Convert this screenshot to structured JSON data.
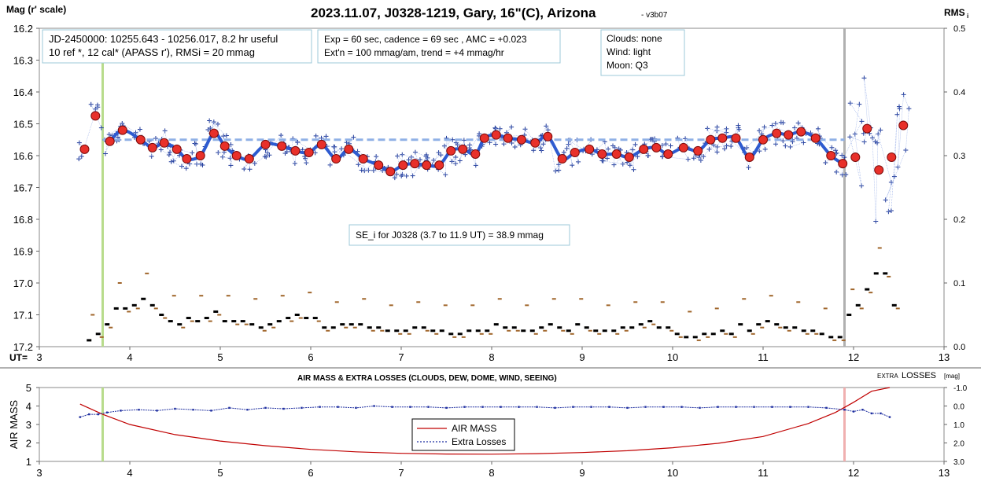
{
  "chart_data": [
    {
      "type": "scatter",
      "title": "2023.11.07, J0328-1219, Gary, 16\"(C), Arizona",
      "version": "- v3b07",
      "ylabel_left": "Mag (r' scale)",
      "ylabel_right": "RMS",
      "ylabel_right_sub": "i",
      "x_prefix": "UT=",
      "xlim": [
        3,
        13
      ],
      "ylim_left": [
        16.2,
        17.2
      ],
      "ylim_right": [
        0.0,
        0.5
      ],
      "x_ticks": [
        "3",
        "4",
        "5",
        "6",
        "7",
        "8",
        "9",
        "10",
        "11",
        "12",
        "13"
      ],
      "y_ticks_left": [
        "16.2",
        "16.3",
        "16.4",
        "16.5",
        "16.6",
        "16.7",
        "16.8",
        "16.9",
        "17.0",
        "17.1",
        "17.2"
      ],
      "y_ticks_right": [
        "0.5",
        "0.4",
        "0.3",
        "0.2",
        "0.1",
        "0.0"
      ],
      "info_boxes": {
        "jd_line1": "JD-2450000: 10255.643 - 10256.017, 8.2 hr useful",
        "jd_line2": "10 ref *, 12 cal*  (APASS r'), RMSi = 20 mmag",
        "exp_line1": "Exp = 60 sec, cadence = 69 sec , AMC = +0.023",
        "exp_line2": "Ext'n = 100 mmag/am, trend = +4 mmag/hr",
        "clouds": "Clouds: none",
        "wind": "Wind:   light",
        "moon": "Moon:  Q3",
        "se": "SE_i for J0328 (3.7 to 11.9 UT) = 38.9 mmag"
      },
      "vertical_markers": {
        "start_ut": 3.7,
        "end_ut": 11.9,
        "start_color": "#b8dc8c",
        "end_color": "#b0b0b0"
      },
      "reference_level": {
        "mag": 16.55,
        "x_range": [
          3.7,
          11.9
        ],
        "color": "#8fb0e6"
      },
      "binned_points": [
        [
          3.5,
          16.58
        ],
        [
          3.62,
          16.475
        ],
        [
          3.78,
          16.555
        ],
        [
          3.92,
          16.52
        ],
        [
          4.12,
          16.55
        ],
        [
          4.25,
          16.575
        ],
        [
          4.38,
          16.56
        ],
        [
          4.52,
          16.58
        ],
        [
          4.63,
          16.61
        ],
        [
          4.78,
          16.6
        ],
        [
          4.93,
          16.53
        ],
        [
          5.05,
          16.57
        ],
        [
          5.18,
          16.6
        ],
        [
          5.32,
          16.61
        ],
        [
          5.5,
          16.565
        ],
        [
          5.68,
          16.57
        ],
        [
          5.83,
          16.585
        ],
        [
          5.98,
          16.59
        ],
        [
          6.12,
          16.565
        ],
        [
          6.28,
          16.61
        ],
        [
          6.42,
          16.58
        ],
        [
          6.58,
          16.61
        ],
        [
          6.75,
          16.63
        ],
        [
          6.88,
          16.65
        ],
        [
          7.02,
          16.63
        ],
        [
          7.15,
          16.625
        ],
        [
          7.28,
          16.63
        ],
        [
          7.42,
          16.63
        ],
        [
          7.55,
          16.585
        ],
        [
          7.68,
          16.58
        ],
        [
          7.82,
          16.595
        ],
        [
          7.92,
          16.545
        ],
        [
          8.05,
          16.535
        ],
        [
          8.18,
          16.545
        ],
        [
          8.33,
          16.55
        ],
        [
          8.48,
          16.56
        ],
        [
          8.62,
          16.54
        ],
        [
          8.78,
          16.61
        ],
        [
          8.92,
          16.59
        ],
        [
          9.08,
          16.58
        ],
        [
          9.22,
          16.595
        ],
        [
          9.38,
          16.595
        ],
        [
          9.52,
          16.605
        ],
        [
          9.68,
          16.58
        ],
        [
          9.82,
          16.575
        ],
        [
          9.95,
          16.595
        ],
        [
          10.12,
          16.575
        ],
        [
          10.28,
          16.585
        ],
        [
          10.42,
          16.55
        ],
        [
          10.55,
          16.545
        ],
        [
          10.7,
          16.545
        ],
        [
          10.85,
          16.605
        ],
        [
          11.0,
          16.55
        ],
        [
          11.15,
          16.53
        ],
        [
          11.28,
          16.535
        ],
        [
          11.42,
          16.525
        ],
        [
          11.58,
          16.545
        ],
        [
          11.75,
          16.6
        ],
        [
          11.88,
          16.625
        ],
        [
          12.02,
          16.605
        ],
        [
          12.15,
          16.515
        ],
        [
          12.28,
          16.645
        ],
        [
          12.42,
          16.605
        ],
        [
          12.55,
          16.505
        ]
      ],
      "rms_points": [
        [
          3.55,
          0.01
        ],
        [
          3.65,
          0.02
        ],
        [
          3.75,
          0.035
        ],
        [
          3.85,
          0.06
        ],
        [
          3.95,
          0.06
        ],
        [
          4.05,
          0.065
        ],
        [
          4.15,
          0.075
        ],
        [
          4.25,
          0.065
        ],
        [
          4.35,
          0.05
        ],
        [
          4.45,
          0.04
        ],
        [
          4.55,
          0.035
        ],
        [
          4.65,
          0.045
        ],
        [
          4.75,
          0.04
        ],
        [
          4.85,
          0.045
        ],
        [
          4.95,
          0.055
        ],
        [
          5.05,
          0.04
        ],
        [
          5.15,
          0.04
        ],
        [
          5.25,
          0.04
        ],
        [
          5.35,
          0.035
        ],
        [
          5.45,
          0.03
        ],
        [
          5.55,
          0.035
        ],
        [
          5.65,
          0.04
        ],
        [
          5.75,
          0.045
        ],
        [
          5.85,
          0.05
        ],
        [
          5.95,
          0.045
        ],
        [
          6.05,
          0.045
        ],
        [
          6.15,
          0.03
        ],
        [
          6.25,
          0.03
        ],
        [
          6.35,
          0.035
        ],
        [
          6.45,
          0.035
        ],
        [
          6.55,
          0.035
        ],
        [
          6.65,
          0.03
        ],
        [
          6.75,
          0.03
        ],
        [
          6.85,
          0.025
        ],
        [
          6.95,
          0.025
        ],
        [
          7.05,
          0.025
        ],
        [
          7.15,
          0.03
        ],
        [
          7.25,
          0.03
        ],
        [
          7.35,
          0.025
        ],
        [
          7.45,
          0.025
        ],
        [
          7.55,
          0.02
        ],
        [
          7.65,
          0.02
        ],
        [
          7.75,
          0.025
        ],
        [
          7.85,
          0.025
        ],
        [
          7.95,
          0.025
        ],
        [
          8.05,
          0.035
        ],
        [
          8.15,
          0.03
        ],
        [
          8.25,
          0.03
        ],
        [
          8.35,
          0.025
        ],
        [
          8.45,
          0.025
        ],
        [
          8.55,
          0.03
        ],
        [
          8.65,
          0.035
        ],
        [
          8.75,
          0.03
        ],
        [
          8.85,
          0.025
        ],
        [
          8.95,
          0.035
        ],
        [
          9.05,
          0.03
        ],
        [
          9.15,
          0.025
        ],
        [
          9.25,
          0.025
        ],
        [
          9.35,
          0.025
        ],
        [
          9.45,
          0.03
        ],
        [
          9.55,
          0.03
        ],
        [
          9.65,
          0.035
        ],
        [
          9.75,
          0.04
        ],
        [
          9.85,
          0.03
        ],
        [
          9.95,
          0.03
        ],
        [
          10.05,
          0.02
        ],
        [
          10.15,
          0.015
        ],
        [
          10.25,
          0.015
        ],
        [
          10.35,
          0.02
        ],
        [
          10.45,
          0.02
        ],
        [
          10.55,
          0.025
        ],
        [
          10.65,
          0.02
        ],
        [
          10.75,
          0.035
        ],
        [
          10.85,
          0.025
        ],
        [
          10.95,
          0.035
        ],
        [
          11.05,
          0.04
        ],
        [
          11.15,
          0.035
        ],
        [
          11.25,
          0.03
        ],
        [
          11.35,
          0.03
        ],
        [
          11.45,
          0.025
        ],
        [
          11.55,
          0.025
        ],
        [
          11.65,
          0.02
        ],
        [
          11.75,
          0.015
        ],
        [
          11.85,
          0.015
        ],
        [
          11.95,
          0.05
        ],
        [
          12.05,
          0.065
        ],
        [
          12.15,
          0.09
        ],
        [
          12.25,
          0.115
        ],
        [
          12.35,
          0.115
        ],
        [
          12.45,
          0.065
        ]
      ]
    },
    {
      "type": "line",
      "title": "AIR MASS & EXTRA LOSSES (CLOUDS, DEW, DOME, WIND, SEEING)",
      "ylabel_left": "AIR MASS",
      "ylabel_right": "EXTRA LOSSES [mag]",
      "ylabel_right_prefix": "EXTRA",
      "ylabel_right_main": "LOSSES",
      "ylabel_right_unit": "[mag]",
      "xlim": [
        3,
        13
      ],
      "ylim_left": [
        1,
        5
      ],
      "ylim_right": [
        3.0,
        -1.0
      ],
      "x_ticks": [
        "3",
        "4",
        "5",
        "6",
        "7",
        "8",
        "9",
        "10",
        "11",
        "12",
        "13"
      ],
      "y_ticks_left": [
        "5",
        "4",
        "3",
        "2",
        "1"
      ],
      "y_ticks_right": [
        "-1.0",
        "0.0",
        "1.0",
        "2.0",
        "3.0"
      ],
      "legend": {
        "position": "bottom-center",
        "items": [
          "AIR MASS",
          "Extra Losses"
        ]
      },
      "series": [
        {
          "name": "AIR MASS",
          "color": "#c00000",
          "x": [
            3.45,
            3.7,
            4.0,
            4.5,
            5.0,
            5.5,
            6.0,
            6.5,
            7.0,
            7.5,
            8.0,
            8.5,
            9.0,
            9.5,
            10.0,
            10.5,
            11.0,
            11.5,
            11.8,
            12.0,
            12.2,
            12.4
          ],
          "values": [
            4.1,
            3.55,
            3.0,
            2.45,
            2.1,
            1.85,
            1.65,
            1.52,
            1.44,
            1.4,
            1.39,
            1.42,
            1.48,
            1.58,
            1.74,
            1.98,
            2.35,
            3.05,
            3.65,
            4.2,
            4.8,
            5.0
          ]
        },
        {
          "name": "Extra Losses",
          "color": "#1f2fa0",
          "x": [
            3.45,
            3.55,
            3.65,
            3.75,
            3.9,
            4.1,
            4.3,
            4.5,
            4.7,
            4.9,
            5.1,
            5.3,
            5.5,
            5.7,
            5.9,
            6.1,
            6.3,
            6.5,
            6.7,
            6.9,
            7.1,
            7.3,
            7.5,
            7.7,
            7.9,
            8.1,
            8.3,
            8.5,
            8.7,
            8.9,
            9.1,
            9.3,
            9.5,
            9.7,
            9.9,
            10.1,
            10.3,
            10.5,
            10.7,
            10.9,
            11.1,
            11.3,
            11.5,
            11.7,
            11.9,
            12.0,
            12.1,
            12.2,
            12.3,
            12.4
          ],
          "values": [
            0.6,
            0.45,
            0.45,
            0.35,
            0.25,
            0.2,
            0.25,
            0.15,
            0.2,
            0.25,
            0.1,
            0.2,
            0.1,
            0.15,
            0.1,
            0.05,
            0.05,
            0.1,
            0.0,
            0.05,
            0.05,
            0.05,
            0.1,
            0.05,
            0.05,
            0.05,
            0.05,
            0.05,
            0.1,
            0.05,
            0.05,
            0.05,
            0.1,
            0.05,
            0.05,
            0.05,
            0.1,
            0.05,
            0.05,
            0.05,
            0.05,
            0.05,
            0.05,
            0.1,
            0.2,
            0.3,
            0.2,
            0.4,
            0.4,
            0.6
          ]
        }
      ],
      "vertical_markers": {
        "start_ut": 3.7,
        "end_ut": 11.9,
        "start_color": "#b8dc8c",
        "end_color": "#f0b0b0"
      }
    }
  ]
}
